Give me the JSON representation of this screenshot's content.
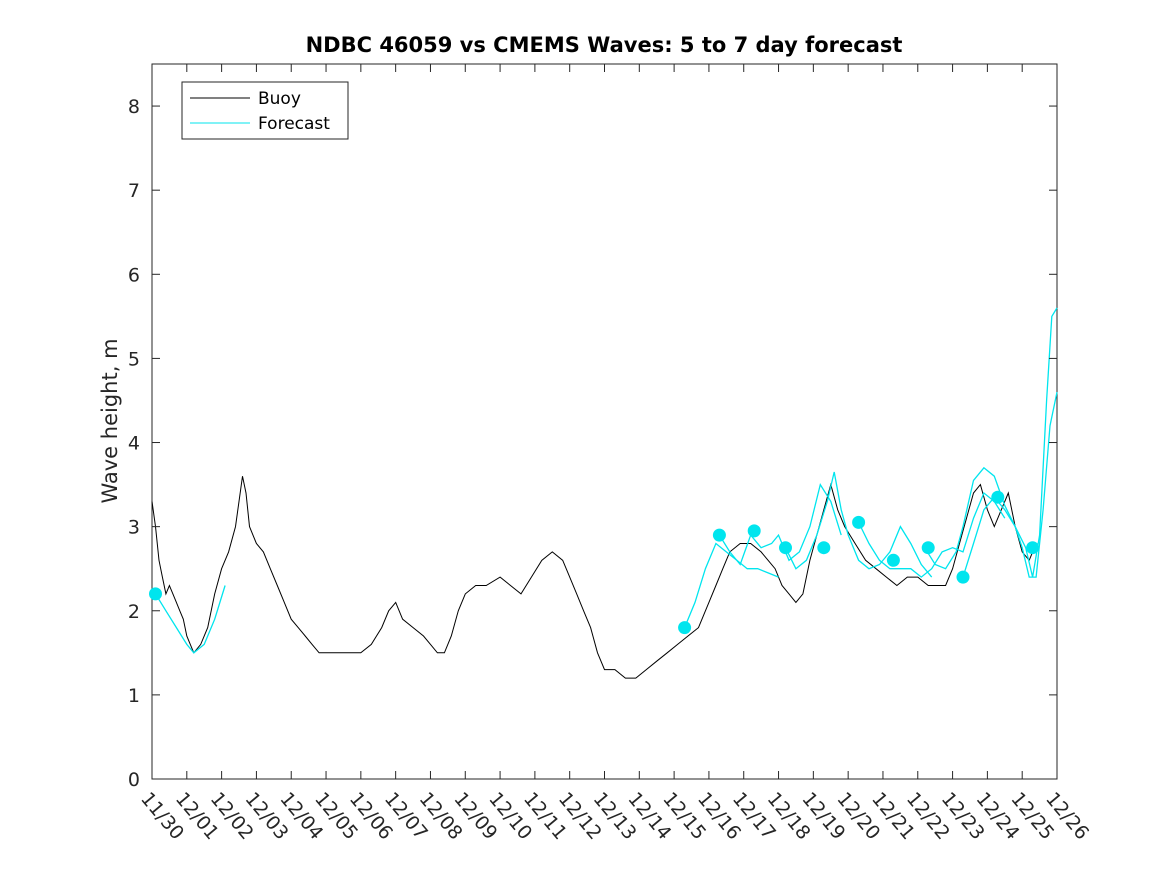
{
  "chart_data": {
    "type": "line",
    "title": "NDBC 46059 vs CMEMS Waves: 5 to 7 day forecast",
    "xlabel": "",
    "ylabel": "Wave height, m",
    "ylim": [
      0,
      8.5
    ],
    "yticks": [
      0,
      1,
      2,
      3,
      4,
      5,
      6,
      7,
      8
    ],
    "xlim": [
      0,
      26
    ],
    "xtick_labels": [
      "11/30",
      "12/01",
      "12/02",
      "12/03",
      "12/04",
      "12/05",
      "12/06",
      "12/07",
      "12/08",
      "12/09",
      "12/10",
      "12/11",
      "12/12",
      "12/13",
      "12/14",
      "12/15",
      "12/16",
      "12/17",
      "12/18",
      "12/19",
      "12/20",
      "12/21",
      "12/22",
      "12/23",
      "12/24",
      "12/25",
      "12/26"
    ],
    "grid": false,
    "legend_position": "top-left",
    "colors": {
      "buoy": "#000000",
      "forecast": "#00e5ee"
    },
    "series": [
      {
        "name": "Buoy",
        "color": "#000000",
        "points": [
          [
            0,
            3.3
          ],
          [
            0.1,
            3.0
          ],
          [
            0.2,
            2.6
          ],
          [
            0.3,
            2.4
          ],
          [
            0.4,
            2.2
          ],
          [
            0.5,
            2.3
          ],
          [
            0.6,
            2.2
          ],
          [
            0.7,
            2.1
          ],
          [
            0.8,
            2.0
          ],
          [
            0.9,
            1.9
          ],
          [
            1.0,
            1.7
          ],
          [
            1.1,
            1.6
          ],
          [
            1.2,
            1.5
          ],
          [
            1.4,
            1.6
          ],
          [
            1.6,
            1.8
          ],
          [
            1.8,
            2.2
          ],
          [
            2.0,
            2.5
          ],
          [
            2.2,
            2.7
          ],
          [
            2.4,
            3.0
          ],
          [
            2.5,
            3.3
          ],
          [
            2.6,
            3.6
          ],
          [
            2.7,
            3.4
          ],
          [
            2.8,
            3.0
          ],
          [
            3.0,
            2.8
          ],
          [
            3.2,
            2.7
          ],
          [
            3.4,
            2.5
          ],
          [
            3.6,
            2.3
          ],
          [
            3.8,
            2.1
          ],
          [
            4.0,
            1.9
          ],
          [
            4.2,
            1.8
          ],
          [
            4.4,
            1.7
          ],
          [
            4.6,
            1.6
          ],
          [
            4.8,
            1.5
          ],
          [
            5.0,
            1.5
          ],
          [
            5.3,
            1.5
          ],
          [
            5.6,
            1.5
          ],
          [
            6.0,
            1.5
          ],
          [
            6.3,
            1.6
          ],
          [
            6.6,
            1.8
          ],
          [
            6.8,
            2.0
          ],
          [
            7.0,
            2.1
          ],
          [
            7.2,
            1.9
          ],
          [
            7.5,
            1.8
          ],
          [
            7.8,
            1.7
          ],
          [
            8.0,
            1.6
          ],
          [
            8.2,
            1.5
          ],
          [
            8.4,
            1.5
          ],
          [
            8.6,
            1.7
          ],
          [
            8.8,
            2.0
          ],
          [
            9.0,
            2.2
          ],
          [
            9.3,
            2.3
          ],
          [
            9.6,
            2.3
          ],
          [
            10.0,
            2.4
          ],
          [
            10.3,
            2.3
          ],
          [
            10.6,
            2.2
          ],
          [
            10.9,
            2.4
          ],
          [
            11.2,
            2.6
          ],
          [
            11.5,
            2.7
          ],
          [
            11.8,
            2.6
          ],
          [
            12.0,
            2.4
          ],
          [
            12.2,
            2.2
          ],
          [
            12.4,
            2.0
          ],
          [
            12.6,
            1.8
          ],
          [
            12.8,
            1.5
          ],
          [
            13.0,
            1.3
          ],
          [
            13.3,
            1.3
          ],
          [
            13.6,
            1.2
          ],
          [
            13.9,
            1.2
          ],
          [
            14.2,
            1.3
          ],
          [
            14.5,
            1.4
          ],
          [
            14.8,
            1.5
          ],
          [
            15.1,
            1.6
          ],
          [
            15.4,
            1.7
          ],
          [
            15.7,
            1.8
          ],
          [
            16.0,
            2.1
          ],
          [
            16.2,
            2.3
          ],
          [
            16.4,
            2.5
          ],
          [
            16.6,
            2.7
          ],
          [
            16.9,
            2.8
          ],
          [
            17.2,
            2.8
          ],
          [
            17.5,
            2.7
          ],
          [
            17.7,
            2.6
          ],
          [
            17.9,
            2.5
          ],
          [
            18.1,
            2.3
          ],
          [
            18.3,
            2.2
          ],
          [
            18.5,
            2.1
          ],
          [
            18.7,
            2.2
          ],
          [
            18.9,
            2.6
          ],
          [
            19.1,
            2.9
          ],
          [
            19.3,
            3.2
          ],
          [
            19.5,
            3.5
          ],
          [
            19.7,
            3.2
          ],
          [
            19.9,
            3.0
          ],
          [
            20.2,
            2.8
          ],
          [
            20.5,
            2.6
          ],
          [
            20.8,
            2.5
          ],
          [
            21.1,
            2.4
          ],
          [
            21.4,
            2.3
          ],
          [
            21.7,
            2.4
          ],
          [
            22.0,
            2.4
          ],
          [
            22.3,
            2.3
          ],
          [
            22.6,
            2.3
          ],
          [
            22.8,
            2.3
          ],
          [
            23.0,
            2.5
          ],
          [
            23.2,
            2.8
          ],
          [
            23.4,
            3.1
          ],
          [
            23.6,
            3.4
          ],
          [
            23.8,
            3.5
          ],
          [
            24.0,
            3.2
          ],
          [
            24.2,
            3.0
          ],
          [
            24.4,
            3.2
          ],
          [
            24.6,
            3.4
          ],
          [
            24.8,
            3.0
          ],
          [
            25.0,
            2.7
          ],
          [
            25.2,
            2.6
          ],
          [
            25.4,
            2.8
          ]
        ]
      },
      {
        "name": "Forecast",
        "color": "#00e5ee",
        "segments": [
          [
            [
              0.1,
              2.2
            ],
            [
              0.4,
              2.0
            ],
            [
              0.7,
              1.8
            ],
            [
              1.0,
              1.6
            ],
            [
              1.2,
              1.5
            ],
            [
              1.5,
              1.6
            ],
            [
              1.8,
              1.9
            ],
            [
              2.1,
              2.3
            ]
          ],
          [
            [
              15.3,
              1.8
            ],
            [
              15.6,
              2.1
            ],
            [
              15.9,
              2.5
            ],
            [
              16.2,
              2.8
            ],
            [
              16.5,
              2.7
            ],
            [
              16.8,
              2.6
            ],
            [
              17.1,
              2.5
            ],
            [
              17.4,
              2.5
            ],
            [
              17.7,
              2.45
            ],
            [
              18.0,
              2.4
            ]
          ],
          [
            [
              16.3,
              2.9
            ],
            [
              16.6,
              2.7
            ],
            [
              16.9,
              2.55
            ],
            [
              17.2,
              2.9
            ],
            [
              17.5,
              2.75
            ],
            [
              17.8,
              2.8
            ],
            [
              18.0,
              2.9
            ],
            [
              18.3,
              2.6
            ],
            [
              18.6,
              2.7
            ],
            [
              18.9,
              3.0
            ],
            [
              19.2,
              3.5
            ],
            [
              19.5,
              3.3
            ],
            [
              19.8,
              2.9
            ]
          ],
          [
            [
              18.2,
              2.75
            ],
            [
              18.5,
              2.5
            ],
            [
              18.8,
              2.6
            ],
            [
              19.1,
              2.9
            ],
            [
              19.4,
              3.3
            ],
            [
              19.6,
              3.65
            ],
            [
              19.8,
              3.2
            ],
            [
              20.0,
              2.9
            ],
            [
              20.3,
              2.6
            ],
            [
              20.6,
              2.5
            ],
            [
              20.9,
              2.55
            ],
            [
              21.2,
              2.7
            ],
            [
              21.5,
              3.0
            ],
            [
              21.8,
              2.8
            ],
            [
              22.1,
              2.55
            ],
            [
              22.4,
              2.4
            ]
          ],
          [
            [
              20.3,
              3.05
            ],
            [
              20.6,
              2.8
            ],
            [
              20.9,
              2.6
            ],
            [
              21.2,
              2.5
            ],
            [
              21.5,
              2.5
            ],
            [
              21.8,
              2.5
            ],
            [
              22.1,
              2.4
            ],
            [
              22.4,
              2.5
            ],
            [
              22.7,
              2.7
            ],
            [
              23.0,
              2.75
            ],
            [
              23.3,
              2.7
            ],
            [
              23.6,
              3.1
            ],
            [
              23.9,
              3.4
            ],
            [
              24.2,
              3.3
            ],
            [
              24.5,
              3.1
            ]
          ],
          [
            [
              22.2,
              2.75
            ],
            [
              22.5,
              2.55
            ],
            [
              22.8,
              2.5
            ],
            [
              23.1,
              2.7
            ],
            [
              23.3,
              3.0
            ],
            [
              23.6,
              3.55
            ],
            [
              23.9,
              3.7
            ],
            [
              24.2,
              3.6
            ],
            [
              24.5,
              3.25
            ],
            [
              24.8,
              3.0
            ],
            [
              25.1,
              2.75
            ],
            [
              25.3,
              2.4
            ],
            [
              25.5,
              2.9
            ],
            [
              25.7,
              4.5
            ],
            [
              25.85,
              5.5
            ],
            [
              26.0,
              5.6
            ]
          ],
          [
            [
              23.3,
              2.4
            ],
            [
              23.6,
              2.8
            ],
            [
              23.9,
              3.2
            ],
            [
              24.2,
              3.35
            ],
            [
              24.5,
              3.2
            ],
            [
              24.8,
              3.0
            ],
            [
              25.0,
              2.75
            ],
            [
              25.2,
              2.4
            ],
            [
              25.4,
              2.4
            ],
            [
              25.6,
              3.2
            ],
            [
              25.8,
              4.2
            ],
            [
              26.0,
              4.6
            ]
          ]
        ]
      }
    ],
    "markers": {
      "name": "Forecast",
      "color": "#00e5ee",
      "points": [
        [
          0.1,
          2.2
        ],
        [
          15.3,
          1.8
        ],
        [
          16.3,
          2.9
        ],
        [
          17.3,
          2.95
        ],
        [
          18.2,
          2.75
        ],
        [
          19.3,
          2.75
        ],
        [
          20.3,
          3.05
        ],
        [
          21.3,
          2.6
        ],
        [
          22.3,
          2.75
        ],
        [
          23.3,
          2.4
        ],
        [
          24.3,
          3.35
        ],
        [
          25.3,
          2.75
        ]
      ]
    },
    "legend": [
      {
        "label": "Buoy",
        "color": "#000000"
      },
      {
        "label": "Forecast",
        "color": "#00e5ee"
      }
    ]
  }
}
